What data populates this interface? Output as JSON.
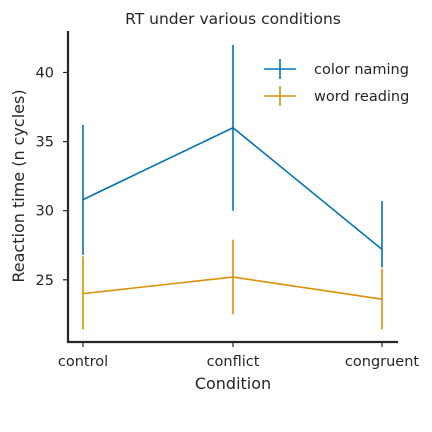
{
  "chart_data": {
    "type": "line",
    "title": "RT under various conditions",
    "xlabel": "Condition",
    "ylabel": "Reaction time (n cycles)",
    "categories": [
      "control",
      "conflict",
      "congruent"
    ],
    "ylim": [
      20.5,
      43
    ],
    "yticks": [
      25,
      30,
      35,
      40
    ],
    "grid": false,
    "legend": "top-right",
    "series": [
      {
        "name": "color naming",
        "color": "#0173b2",
        "values": [
          30.8,
          36.0,
          27.2
        ],
        "err_low": [
          26.8,
          30.0,
          25.9
        ],
        "err_high": [
          36.2,
          42.0,
          30.7
        ]
      },
      {
        "name": "word reading",
        "color": "#de8f05",
        "values": [
          24.0,
          25.2,
          23.6
        ],
        "err_low": [
          21.4,
          22.5,
          21.4
        ],
        "err_high": [
          26.7,
          27.9,
          25.8
        ]
      }
    ]
  }
}
